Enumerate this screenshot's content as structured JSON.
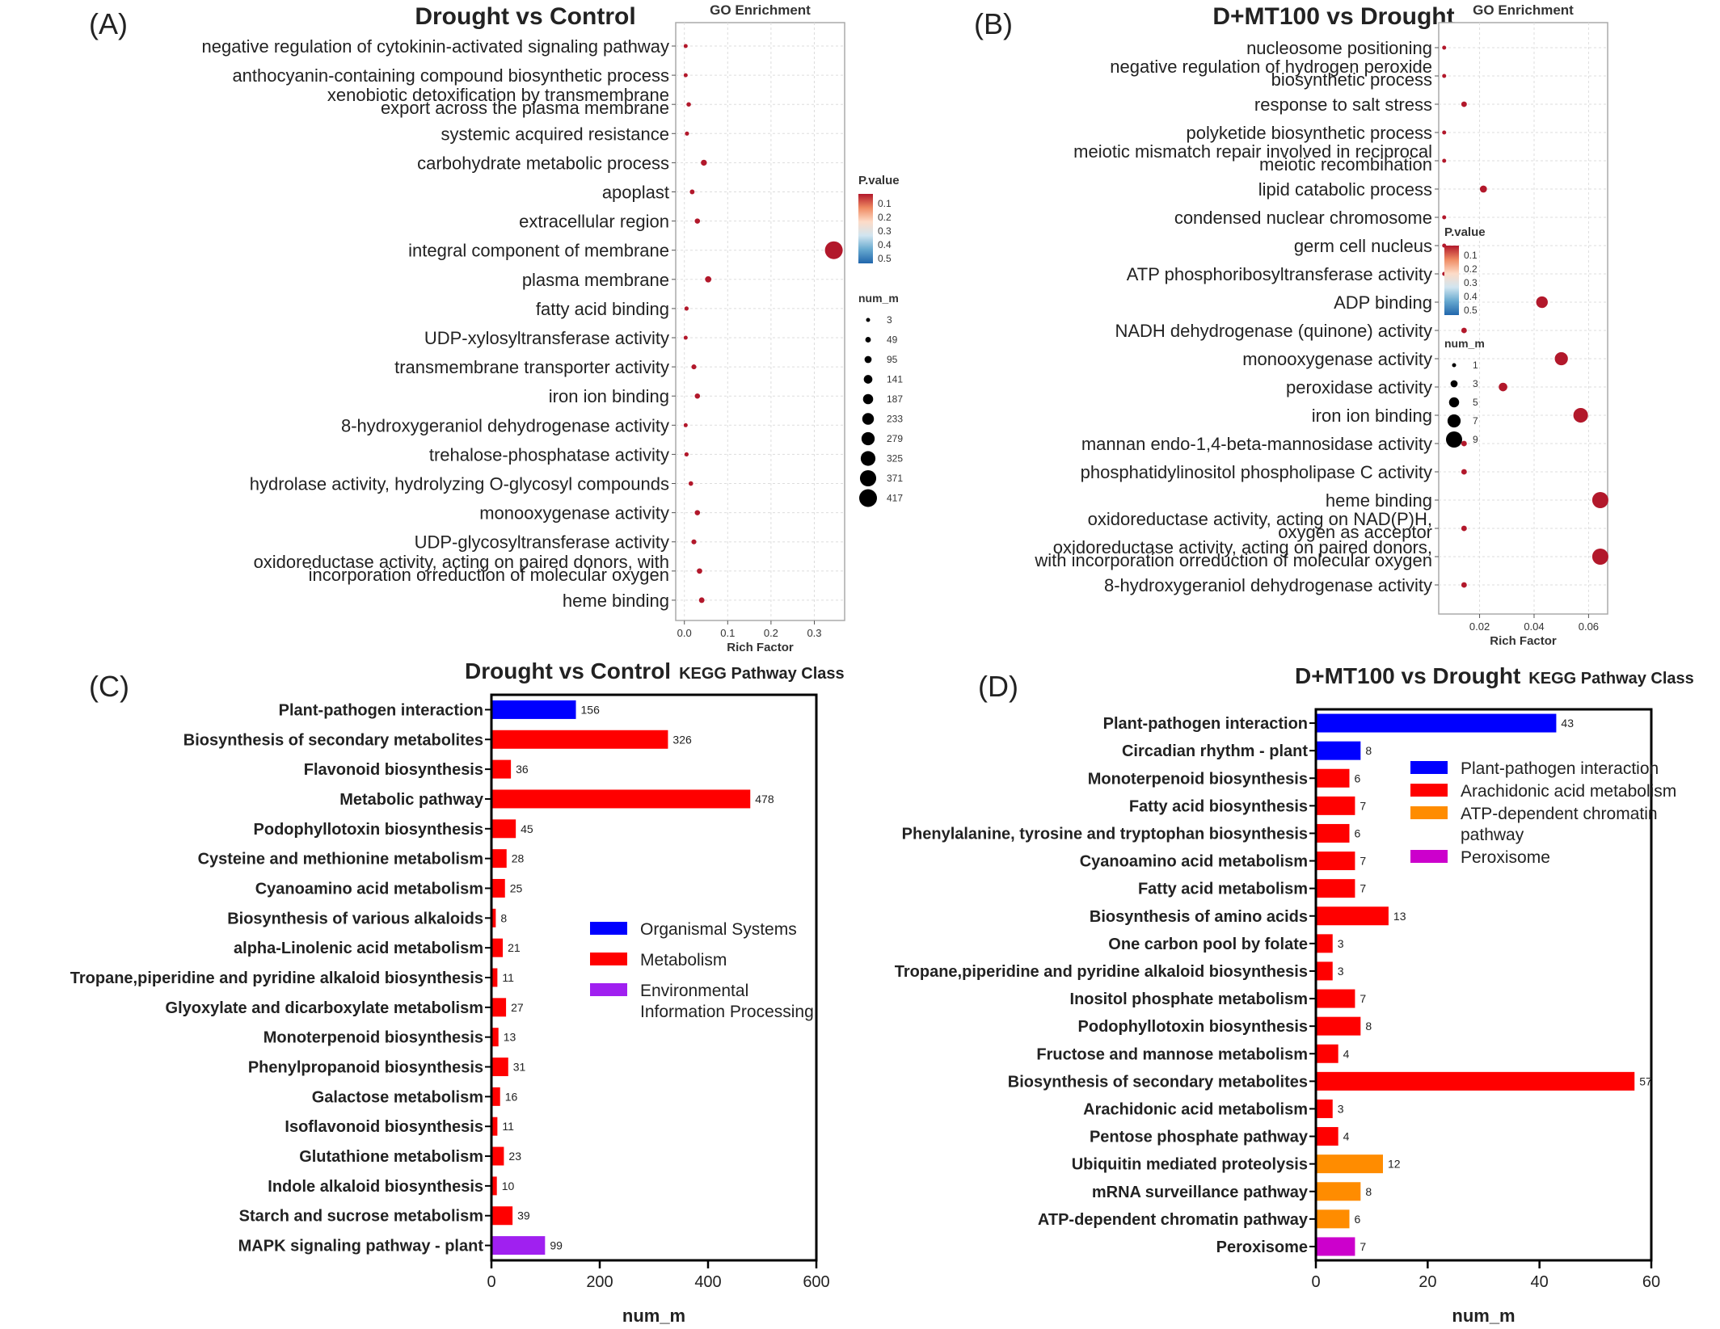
{
  "panels": {
    "a": {
      "letter": "(A)",
      "title": "Drought vs Control"
    },
    "b": {
      "letter": "(B)",
      "title": "D+MT100 vs Drought"
    },
    "c": {
      "letter": "(C)",
      "title": "Drought vs Control",
      "subtitle": "KEGG Pathway Class"
    },
    "d": {
      "letter": "(D)",
      "title": "D+MT100 vs Drought",
      "subtitle": "KEGG Pathway Class"
    }
  },
  "chart_data": [
    {
      "id": "A",
      "type": "scatter",
      "title": "GO Enrichment",
      "xlabel": "Rich Factor",
      "ylabel": "",
      "xlim": [
        -0.02,
        0.37
      ],
      "xticks": [
        0.0,
        0.1,
        0.2,
        0.3
      ],
      "xtick_labels": [
        "0.0",
        "0.1",
        "0.2",
        "0.3"
      ],
      "grid": true,
      "color_legend": {
        "title": "P.value",
        "ticks": [
          "0.1",
          "0.2",
          "0.3",
          "0.4",
          "0.5"
        ],
        "colors": [
          "#b2182b",
          "#ef8a62",
          "#fddbc7",
          "#d1e5f0",
          "#67a9cf",
          "#2166ac"
        ]
      },
      "size_legend": {
        "title": "num_m",
        "values": [
          "3",
          "49",
          "95",
          "141",
          "187",
          "233",
          "279",
          "325",
          "371",
          "417"
        ]
      },
      "size_range": [
        3,
        417
      ],
      "point_color": "#b2182b",
      "categories": [
        [
          "negative regulation of cytokinin-activated signaling pathway"
        ],
        [
          "anthocyanin-containing compound biosynthetic process"
        ],
        [
          "xenobiotic detoxification by transmembrane",
          "export across the plasma membrane"
        ],
        [
          "systemic acquired resistance"
        ],
        [
          "carbohydrate metabolic process"
        ],
        [
          "apoplast"
        ],
        [
          "extracellular region"
        ],
        [
          "integral component of membrane"
        ],
        [
          "plasma membrane"
        ],
        [
          "fatty acid binding"
        ],
        [
          "UDP-xylosyltransferase activity"
        ],
        [
          "transmembrane transporter activity"
        ],
        [
          "iron ion binding"
        ],
        [
          "8-hydroxygeraniol dehydrogenase activity"
        ],
        [
          "trehalose-phosphatase activity"
        ],
        [
          "hydrolase activity, hydrolyzing O-glycosyl compounds"
        ],
        [
          "monooxygenase activity"
        ],
        [
          "UDP-glycosyltransferase activity"
        ],
        [
          "oxidoreductase activity, acting on paired donors, with",
          "incorporation orreduction of molecular oxygen"
        ],
        [
          "heme binding"
        ]
      ],
      "x": [
        0.003,
        0.003,
        0.01,
        0.006,
        0.045,
        0.018,
        0.03,
        0.345,
        0.055,
        0.005,
        0.003,
        0.022,
        0.03,
        0.003,
        0.005,
        0.015,
        0.03,
        0.022,
        0.035,
        0.04
      ],
      "size": [
        3,
        3,
        15,
        8,
        60,
        25,
        40,
        417,
        70,
        8,
        3,
        30,
        40,
        3,
        8,
        20,
        40,
        30,
        45,
        50
      ]
    },
    {
      "id": "B",
      "type": "scatter",
      "title": "GO Enrichment",
      "xlabel": "Rich Factor",
      "ylabel": "",
      "xlim": [
        0.005,
        0.067
      ],
      "xticks": [
        0.02,
        0.04,
        0.06
      ],
      "xtick_labels": [
        "0.02",
        "0.04",
        "0.06"
      ],
      "grid": true,
      "color_legend": {
        "title": "P.value",
        "ticks": [
          "0.1",
          "0.2",
          "0.3",
          "0.4",
          "0.5"
        ],
        "colors": [
          "#b2182b",
          "#ef8a62",
          "#fddbc7",
          "#d1e5f0",
          "#67a9cf",
          "#2166ac"
        ]
      },
      "size_legend": {
        "title": "num_m",
        "values": [
          "1",
          "3",
          "5",
          "7",
          "9"
        ]
      },
      "size_range": [
        1,
        9
      ],
      "point_color": "#b2182b",
      "categories": [
        [
          "nucleosome positioning"
        ],
        [
          "negative regulation of hydrogen peroxide",
          "biosynthetic process"
        ],
        [
          "response to salt stress"
        ],
        [
          "polyketide biosynthetic process"
        ],
        [
          "meiotic mismatch repair involved in reciprocal",
          "meiotic recombination"
        ],
        [
          "lipid catabolic process"
        ],
        [
          "condensed nuclear chromosome"
        ],
        [
          "germ cell nucleus"
        ],
        [
          "ATP phosphoribosyltransferase activity"
        ],
        [
          "ADP binding"
        ],
        [
          "NADH dehydrogenase (quinone) activity"
        ],
        [
          "monooxygenase activity"
        ],
        [
          "peroxidase activity"
        ],
        [
          "iron ion binding"
        ],
        [
          "mannan endo-1,4-beta-mannosidase activity"
        ],
        [
          "phosphatidylinositol phospholipase C activity"
        ],
        [
          "heme binding"
        ],
        [
          "oxidoreductase activity, acting on NAD(P)H,",
          "oxygen as acceptor"
        ],
        [
          "oxidoreductase activity, acting on paired donors,",
          "with incorporation orreduction of molecular oxygen"
        ],
        [
          "8-hydroxygeraniol dehydrogenase activity"
        ]
      ],
      "x": [
        0.007,
        0.007,
        0.0143,
        0.007,
        0.007,
        0.0214,
        0.007,
        0.007,
        0.007,
        0.0429,
        0.0143,
        0.05,
        0.0286,
        0.0571,
        0.0143,
        0.0143,
        0.0643,
        0.0143,
        0.0643,
        0.0143
      ],
      "size": [
        1,
        1,
        2,
        1,
        1,
        3,
        1,
        1,
        1,
        6,
        2,
        7,
        4,
        8,
        2,
        2,
        9,
        2,
        9,
        2
      ]
    },
    {
      "id": "C",
      "type": "bar",
      "orientation": "horizontal",
      "xlabel": "num_m",
      "ylabel": "",
      "xlim": [
        0,
        600
      ],
      "xticks": [
        0,
        200,
        400,
        600
      ],
      "categories": [
        "Plant-pathogen interaction",
        "Biosynthesis of secondary metabolites",
        "Flavonoid biosynthesis",
        "Metabolic pathway",
        "Podophyllotoxin biosynthesis",
        "Cysteine and methionine metabolism",
        "Cyanoamino acid metabolism",
        "Biosynthesis of various alkaloids",
        "alpha-Linolenic acid metabolism",
        "Tropane,piperidine and pyridine alkaloid biosynthesis",
        "Glyoxylate and dicarboxylate metabolism",
        "Monoterpenoid biosynthesis",
        "Phenylpropanoid biosynthesis",
        "Galactose metabolism",
        "Isoflavonoid biosynthesis",
        "Glutathione metabolism",
        "Indole alkaloid biosynthesis",
        "Starch and sucrose metabolism",
        "MAPK signaling pathway - plant"
      ],
      "values": [
        156,
        326,
        36,
        478,
        45,
        28,
        25,
        8,
        21,
        11,
        27,
        13,
        31,
        16,
        11,
        23,
        10,
        39,
        99
      ],
      "groups": [
        0,
        1,
        1,
        1,
        1,
        1,
        1,
        1,
        1,
        1,
        1,
        1,
        1,
        1,
        1,
        1,
        1,
        1,
        2
      ],
      "legend": [
        {
          "lines": [
            "Organismal Systems"
          ],
          "color": "#0000ff"
        },
        {
          "lines": [
            "Metabolism"
          ],
          "color": "#ff0000"
        },
        {
          "lines": [
            "Environmental",
            "Information Processing"
          ],
          "color": "#a020f0"
        }
      ]
    },
    {
      "id": "D",
      "type": "bar",
      "orientation": "horizontal",
      "xlabel": "num_m",
      "ylabel": "",
      "xlim": [
        0,
        60
      ],
      "xticks": [
        0,
        20,
        40,
        60
      ],
      "categories": [
        "Plant-pathogen interaction",
        "Circadian rhythm - plant",
        "Monoterpenoid biosynthesis",
        "Fatty acid biosynthesis",
        "Phenylalanine, tyrosine and tryptophan biosynthesis",
        "Cyanoamino acid metabolism",
        "Fatty acid metabolism",
        "Biosynthesis of amino acids",
        "One carbon pool by folate",
        "Tropane,piperidine and pyridine alkaloid biosynthesis",
        "Inositol phosphate metabolism",
        "Podophyllotoxin biosynthesis",
        "Fructose and mannose metabolism",
        "Biosynthesis of secondary metabolites",
        "Arachidonic acid metabolism",
        "Pentose phosphate pathway",
        "Ubiquitin mediated proteolysis",
        "mRNA surveillance pathway",
        "ATP-dependent chromatin pathway",
        "Peroxisome"
      ],
      "values": [
        43,
        8,
        6,
        7,
        6,
        7,
        7,
        13,
        3,
        3,
        7,
        8,
        4,
        57,
        3,
        4,
        12,
        8,
        6,
        7
      ],
      "groups": [
        0,
        0,
        1,
        1,
        1,
        1,
        1,
        1,
        1,
        1,
        1,
        1,
        1,
        1,
        1,
        1,
        2,
        2,
        2,
        3
      ],
      "legend": [
        {
          "lines": [
            "Plant-pathogen interaction"
          ],
          "color": "#0000ff"
        },
        {
          "lines": [
            "Arachidonic acid metabolism"
          ],
          "color": "#ff0000"
        },
        {
          "lines": [
            "ATP-dependent chromatin",
            "pathway"
          ],
          "color": "#ff8c00"
        },
        {
          "lines": [
            "Peroxisome"
          ],
          "color": "#cc00cc"
        }
      ]
    }
  ]
}
